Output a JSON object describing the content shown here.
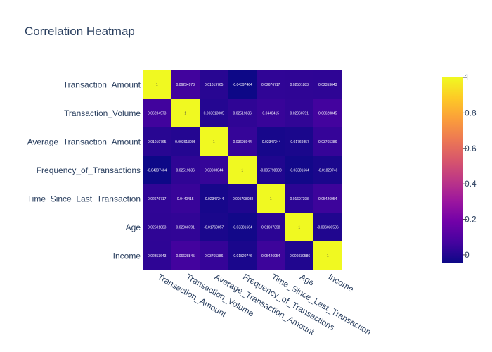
{
  "chart_data": {
    "type": "heatmap",
    "title": "Correlation Heatmap",
    "xlabel": "",
    "ylabel": "",
    "categories": [
      "Transaction_Amount",
      "Transaction_Volume",
      "Average_Transaction_Amount",
      "Frequency_of_Transactions",
      "Time_Since_Last_Transaction",
      "Age",
      "Income"
    ],
    "z": [
      [
        1,
        0.06234973,
        0.01019765,
        -0.04397464,
        0.02676717,
        0.02501883,
        0.02353643
      ],
      [
        0.06234973,
        1,
        0.003613005,
        0.02519836,
        0.0440415,
        0.02960791,
        0.06628845
      ],
      [
        0.01019765,
        0.003613005,
        1,
        0.03698044,
        -0.02347244,
        -0.01769857,
        0.03765386
      ],
      [
        -0.04397464,
        0.02519836,
        0.03698044,
        1,
        -0.005798038,
        -0.03381664,
        -0.01820746
      ],
      [
        0.02676717,
        0.0440415,
        -0.02347244,
        -0.005798038,
        1,
        0.01697398,
        0.05426954
      ],
      [
        0.02501883,
        0.02960791,
        -0.01769857,
        -0.03381664,
        0.01697398,
        1,
        -0.006030586
      ],
      [
        0.02353643,
        0.06628845,
        0.03765386,
        -0.01820746,
        0.05426954,
        -0.006030586,
        1
      ]
    ],
    "zrange": [
      -0.04397464,
      1
    ],
    "colorbar_ticks": [
      0,
      0.2,
      0.4,
      0.6,
      0.8,
      1
    ],
    "colorscale": "plasma"
  }
}
